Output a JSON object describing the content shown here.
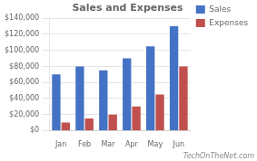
{
  "chart_data": {
    "type": "bar",
    "title": "Sales and Expenses",
    "categories": [
      "Jan",
      "Feb",
      "Mar",
      "Apr",
      "May",
      "Jun"
    ],
    "series": [
      {
        "name": "Sales",
        "color": "#4472C4",
        "values": [
          70000,
          80000,
          75000,
          90000,
          105000,
          130000
        ]
      },
      {
        "name": "Expenses",
        "color": "#C0504D",
        "values": [
          10000,
          15000,
          20000,
          30000,
          45000,
          80000
        ]
      }
    ],
    "ylim": [
      0,
      140000
    ],
    "yticks": [
      {
        "value": 0,
        "label": "$0"
      },
      {
        "value": 20000,
        "label": "$20,000"
      },
      {
        "value": 40000,
        "label": "$40,000"
      },
      {
        "value": 60000,
        "label": "$60,000"
      },
      {
        "value": 80000,
        "label": "$80,000"
      },
      {
        "value": 100000,
        "label": "$100,000"
      },
      {
        "value": 120000,
        "label": "$120,000"
      },
      {
        "value": 140000,
        "label": "$140,000"
      }
    ],
    "grid": true,
    "legend": "right",
    "annotations": [
      "TechOnTheNet.com"
    ]
  }
}
